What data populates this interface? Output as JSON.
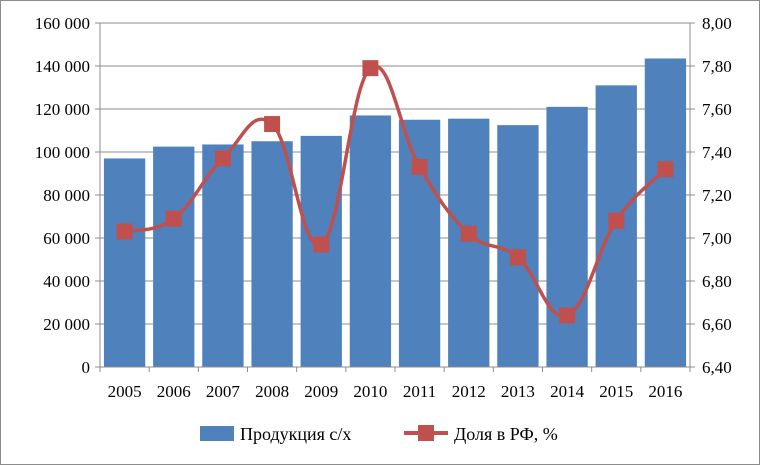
{
  "chart_data": {
    "type": "bar+line",
    "categories": [
      "2005",
      "2006",
      "2007",
      "2008",
      "2009",
      "2010",
      "2011",
      "2012",
      "2013",
      "2014",
      "2015",
      "2016"
    ],
    "series": [
      {
        "name": "Продукция с/х",
        "kind": "bar",
        "axis": "left",
        "color": "#4f81bd",
        "values": [
          97000,
          102500,
          103500,
          105000,
          107500,
          117000,
          115000,
          115500,
          112500,
          121000,
          131000,
          143500
        ]
      },
      {
        "name": "Доля в РФ, %",
        "kind": "line",
        "axis": "right",
        "color": "#c0504d",
        "marker": "square",
        "values": [
          7.03,
          7.09,
          7.37,
          7.53,
          6.97,
          7.79,
          7.33,
          7.02,
          6.91,
          6.64,
          7.08,
          7.32
        ]
      }
    ],
    "y_left": {
      "min": 0,
      "max": 160000,
      "step": 20000,
      "tick_labels": [
        "0",
        "20 000",
        "40 000",
        "60 000",
        "80 000",
        "100 000",
        "120 000",
        "140 000",
        "160 000"
      ]
    },
    "y_right": {
      "min": 6.4,
      "max": 8.0,
      "step": 0.2,
      "tick_labels": [
        "6,40",
        "6,60",
        "6,80",
        "7,00",
        "7,20",
        "7,40",
        "7,60",
        "7,80",
        "8,00"
      ]
    },
    "grid": true,
    "legend_position": "bottom",
    "title": "",
    "xlabel": "",
    "ylabel": ""
  }
}
